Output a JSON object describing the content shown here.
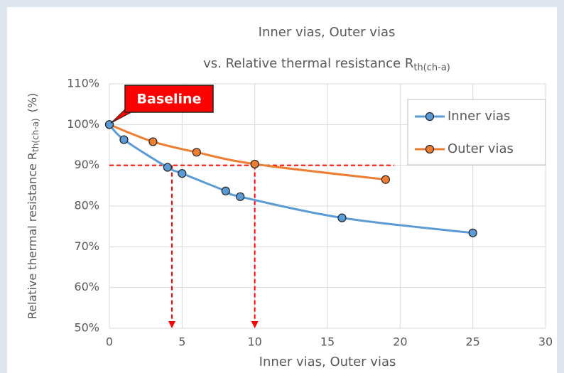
{
  "chart_data": {
    "type": "line",
    "title_lines": [
      "Inner vias, Outer vias",
      "vs. Relative thermal resistance R"
    ],
    "title_subscript": "th(ch-a)",
    "xlabel": "Inner vias, Outer vias",
    "ylabel": "Relative thermal resistance R",
    "ylabel_subscript": "th(ch-a)",
    "ylabel_suffix": "(%)",
    "xlim": [
      0,
      30
    ],
    "xticks": [
      0,
      5,
      10,
      15,
      20,
      25,
      30
    ],
    "ylim": [
      50,
      110
    ],
    "yticks": [
      {
        "value": 50,
        "label": "50%"
      },
      {
        "value": 60,
        "label": "60%"
      },
      {
        "value": 70,
        "label": "70%"
      },
      {
        "value": 80,
        "label": "80%"
      },
      {
        "value": 90,
        "label": "90%"
      },
      {
        "value": 100,
        "label": "100%"
      },
      {
        "value": 110,
        "label": "110%"
      }
    ],
    "grid": true,
    "legend": "upper right",
    "series": [
      {
        "name": "Inner vias",
        "color": "#5b9bd5",
        "x": [
          0,
          1,
          4,
          5,
          8,
          9,
          16,
          25
        ],
        "values": [
          100,
          96.3,
          89.5,
          88,
          83.7,
          82.3,
          77.1,
          73.4
        ]
      },
      {
        "name": "Outer vias",
        "color": "#ed7d31",
        "x": [
          0,
          3,
          6,
          10,
          19
        ],
        "values": [
          100,
          95.8,
          93.2,
          90.3,
          86.5
        ]
      }
    ],
    "annotation": {
      "text": "Baseline",
      "color": "#ff0000"
    },
    "reference": {
      "y": 90,
      "x_end": 19.6,
      "arrows_x": [
        4.3,
        10
      ],
      "color": "#ff0000"
    }
  }
}
